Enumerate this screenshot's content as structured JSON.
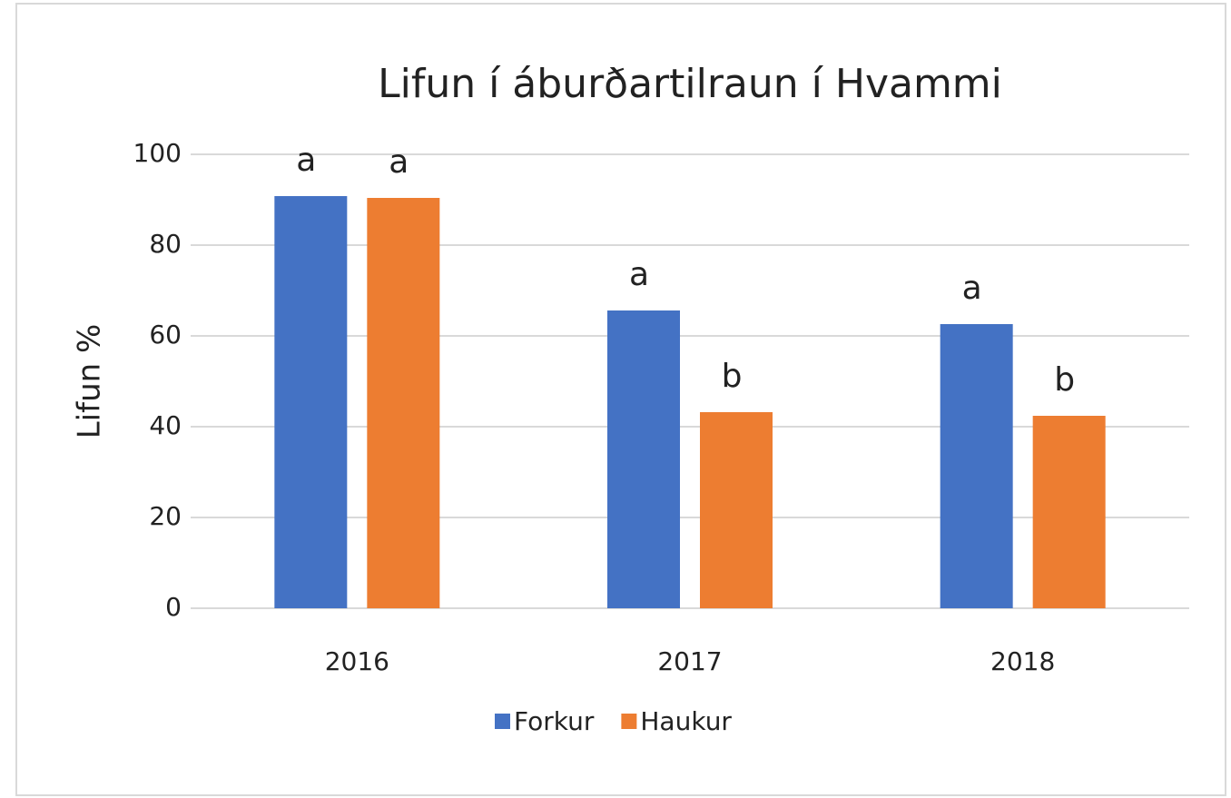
{
  "chart_data": {
    "type": "bar",
    "title": "Lifun í áburðartilraun í Hvammi",
    "ylabel": "Lifun %",
    "categories": [
      "2016",
      "2017",
      "2018"
    ],
    "series": [
      {
        "name": "Forkur",
        "color": "#4472c4",
        "values": [
          90.8,
          65.6,
          62.6
        ],
        "letters": [
          "a",
          "a",
          "a"
        ]
      },
      {
        "name": "Haukur",
        "color": "#ed7d31",
        "values": [
          90.4,
          43.2,
          42.4
        ],
        "letters": [
          "a",
          "b",
          "b"
        ]
      }
    ],
    "ylim": [
      0,
      100
    ],
    "yticks": [
      0,
      20,
      40,
      60,
      80,
      100
    ],
    "grid": true,
    "legend": "bottom"
  }
}
